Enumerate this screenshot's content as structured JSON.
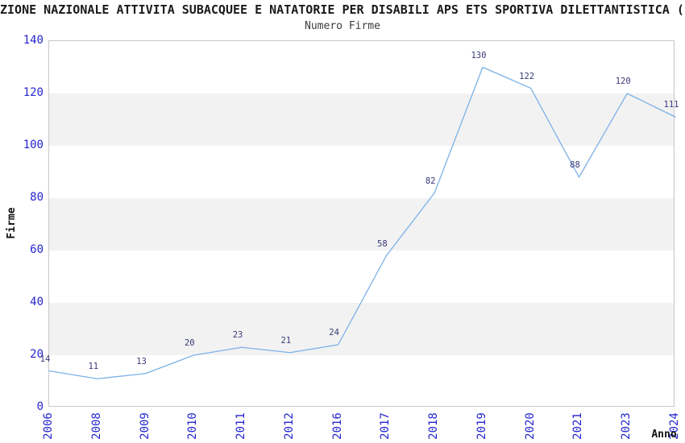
{
  "title": "ZIONE NAZIONALE ATTIVITA SUBACQUEE E NATATORIE PER DISABILI APS ETS SPORTIVA DILETTANTISTICA (c",
  "subtitle": "Numero Firme",
  "chart_data": {
    "type": "line",
    "title": "Numero Firme",
    "categories": [
      "2006",
      "2008",
      "2009",
      "2010",
      "2011",
      "2012",
      "2016",
      "2017",
      "2018",
      "2019",
      "2020",
      "2021",
      "2023",
      "2024"
    ],
    "values": [
      14,
      11,
      13,
      20,
      23,
      21,
      24,
      58,
      82,
      130,
      122,
      88,
      120,
      111
    ],
    "xlabel": "Anno",
    "ylabel": "Firme",
    "ylim": [
      0,
      140
    ],
    "yticks": [
      0,
      20,
      40,
      60,
      80,
      100,
      120,
      140
    ],
    "grid": "alternating-horizontal-bands",
    "legend": "none",
    "point_labels": true,
    "colors": {
      "line": "#7cb1e8",
      "tick_label": "#2525cf",
      "point_label": "#383878",
      "band": "#f2f2f2",
      "plot_border": "#c8c8c8",
      "title_text": "#1a1a1a",
      "subtitle_text": "#3c3c3c"
    }
  }
}
